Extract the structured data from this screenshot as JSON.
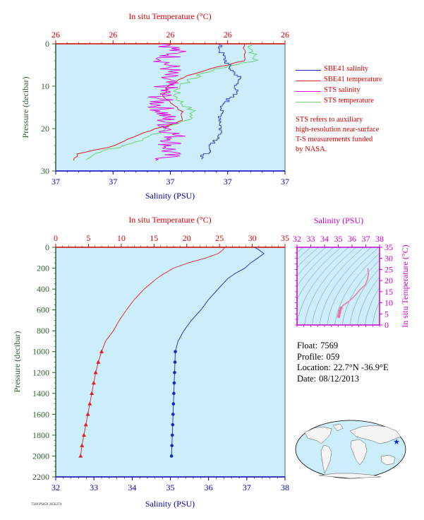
{
  "colors": {
    "panel_bg": "#cbeefa",
    "temperature": "#d40000",
    "salinity_axis": "#0000b0",
    "pressure_axis": "#2f5e2f",
    "sbe_salinity": "#1428c8",
    "sbe_temperature": "#e02020",
    "sts_salinity": "#e000e0",
    "sts_temperature": "#70d070",
    "ts_axis": "#cc00cc",
    "ts_curve": "#f070a0"
  },
  "top_panel": {
    "top_axis_title": "In situ Temperature (°C)",
    "bottom_axis_title": "Salinity (PSU)",
    "left_axis_title": "Pressure (decibar)",
    "temp_tick_labels": [
      "26",
      "26",
      "26",
      "26",
      "26"
    ],
    "sal_tick_labels": [
      "37",
      "37",
      "37",
      "37",
      "37"
    ],
    "pressure_tick_labels": [
      "0",
      "10",
      "20",
      "30"
    ]
  },
  "legend": {
    "items": [
      {
        "label": "SBE41 salinity",
        "color": "#1428c8"
      },
      {
        "label": "SBE41 temperature",
        "color": "#e02020"
      },
      {
        "label": "STS salinity",
        "color": "#e000e0"
      },
      {
        "label": "STS temperature",
        "color": "#70d070"
      }
    ]
  },
  "note": {
    "lines": [
      "STS refers to auxiliary",
      "high-resolution near-surface",
      "T-S measurements funded",
      "by NASA."
    ]
  },
  "main_panel": {
    "top_axis_title": "In situ Temperature (°C)",
    "bottom_axis_title": "Salinity (PSU)",
    "left_axis_title": "Pressure (decibar)",
    "temp_tick_labels": [
      "0",
      "5",
      "10",
      "15",
      "20",
      "25",
      "30",
      "35"
    ],
    "sal_tick_labels": [
      "32",
      "33",
      "34",
      "35",
      "36",
      "37",
      "38"
    ],
    "pressure_tick_labels": [
      "0",
      "200",
      "400",
      "600",
      "800",
      "1000",
      "1200",
      "1400",
      "1600",
      "1800",
      "2000",
      "2200"
    ]
  },
  "ts_panel": {
    "top_axis_title": "Salinity (PSU)",
    "right_axis_title": "In situ Temperature (°C)",
    "sal_tick_labels": [
      "32",
      "33",
      "34",
      "35",
      "36",
      "37",
      "38"
    ],
    "temp_tick_labels": [
      "0",
      "5",
      "10",
      "15",
      "20",
      "25",
      "30",
      "35"
    ]
  },
  "info": {
    "float_label": "Float:",
    "float_value": "7569",
    "profile_label": "Profile:",
    "profile_value": "059",
    "location_label": "Location:",
    "location_value": "22.7°N -36.9°E",
    "date_label": "Date:",
    "date_value": "08/12/2013"
  },
  "footer_code": "7569 PS059 2056374",
  "chart_data": [
    {
      "type": "line",
      "panel": "near-surface",
      "x_axes": {
        "bottom": "Salinity (PSU)",
        "top": "In situ Temperature (°C)"
      },
      "ylabel": "Pressure (decibar)",
      "ylim": [
        30,
        0
      ],
      "series": [
        {
          "name": "SBE41 salinity",
          "pressure": [
            0,
            2,
            4,
            6,
            8,
            10,
            12,
            14,
            16,
            18,
            20,
            22,
            24,
            26,
            27.5
          ],
          "x_frac": [
            0.71,
            0.72,
            0.74,
            0.76,
            0.8,
            0.79,
            0.78,
            0.74,
            0.72,
            0.72,
            0.72,
            0.72,
            0.68,
            0.66,
            0.62
          ]
        },
        {
          "name": "SBE41 temperature",
          "pressure": [
            0,
            2,
            4,
            6,
            8,
            10,
            12,
            14,
            16,
            18,
            20,
            22,
            24,
            26,
            27.5
          ],
          "x_frac": [
            0.82,
            0.83,
            0.82,
            0.67,
            0.55,
            0.49,
            0.47,
            0.5,
            0.55,
            0.56,
            0.44,
            0.34,
            0.26,
            0.1,
            0.08
          ]
        },
        {
          "name": "STS salinity",
          "pressure": [
            0,
            2,
            4,
            6,
            8,
            10,
            12,
            14,
            16,
            18,
            20,
            22,
            24,
            26,
            27.5
          ],
          "x_frac": [
            0.5,
            0.52,
            0.48,
            0.5,
            0.47,
            0.48,
            0.46,
            0.45,
            0.47,
            0.48,
            0.5,
            0.52,
            0.5,
            0.49,
            0.48
          ]
        },
        {
          "name": "STS temperature",
          "pressure": [
            0,
            2,
            4,
            6,
            8,
            10,
            12,
            14,
            16,
            18,
            20,
            22,
            24,
            26,
            27.5
          ],
          "x_frac": [
            0.85,
            0.86,
            0.87,
            0.7,
            0.6,
            0.54,
            0.52,
            0.55,
            0.6,
            0.58,
            0.48,
            0.4,
            0.31,
            0.15,
            0.12
          ]
        }
      ]
    },
    {
      "type": "line",
      "panel": "full-profile",
      "x_axes": {
        "bottom": "Salinity (PSU)",
        "top": "In situ Temperature (°C)"
      },
      "xlim_salinity": [
        32,
        38
      ],
      "xlim_temperature": [
        0,
        35
      ],
      "ylabel": "Pressure (decibar)",
      "ylim": [
        2200,
        0
      ],
      "series": [
        {
          "name": "temperature",
          "axis": "top",
          "pressure": [
            0,
            20,
            60,
            100,
            150,
            200,
            250,
            300,
            400,
            500,
            600,
            700,
            800,
            900,
            1000,
            1100,
            1200,
            1300,
            1400,
            1500,
            1600,
            1700,
            1800,
            1900,
            2000
          ],
          "values": [
            25.8,
            25.6,
            24.8,
            23.0,
            20.2,
            18.0,
            16.6,
            15.4,
            13.5,
            12.0,
            10.8,
            9.7,
            8.8,
            7.6,
            7.0,
            6.5,
            6.1,
            5.8,
            5.5,
            5.2,
            4.9,
            4.6,
            4.3,
            4.0,
            3.8
          ]
        },
        {
          "name": "salinity",
          "axis": "bottom",
          "pressure": [
            0,
            20,
            60,
            100,
            150,
            200,
            250,
            300,
            400,
            500,
            600,
            700,
            800,
            900,
            1000,
            1100,
            1200,
            1300,
            1400,
            1500,
            1600,
            1700,
            1800,
            1900,
            2000
          ],
          "values": [
            37.2,
            37.3,
            37.45,
            37.3,
            37.1,
            36.95,
            36.7,
            36.5,
            36.25,
            36.0,
            35.8,
            35.55,
            35.35,
            35.2,
            35.13,
            35.12,
            35.11,
            35.1,
            35.09,
            35.08,
            35.07,
            35.06,
            35.05,
            35.04,
            35.03
          ]
        }
      ],
      "sampled_from_pressure": 1000
    },
    {
      "type": "line",
      "panel": "T-S diagram",
      "xlabel": "Salinity (PSU)",
      "ylabel": "In situ Temperature (°C)",
      "xlim": [
        32,
        38
      ],
      "ylim": [
        0,
        35
      ],
      "series": [
        {
          "name": "T-S",
          "salinity": [
            35.03,
            35.05,
            35.1,
            35.12,
            35.2,
            35.35,
            35.55,
            35.8,
            36.0,
            36.25,
            36.5,
            36.7,
            36.95,
            37.1,
            37.2,
            37.15
          ],
          "temperature": [
            3.8,
            4.5,
            5.5,
            6.5,
            7.6,
            8.8,
            9.7,
            10.8,
            12.0,
            13.5,
            15.4,
            16.6,
            18.0,
            20.2,
            23.0,
            25.6
          ]
        }
      ]
    }
  ]
}
